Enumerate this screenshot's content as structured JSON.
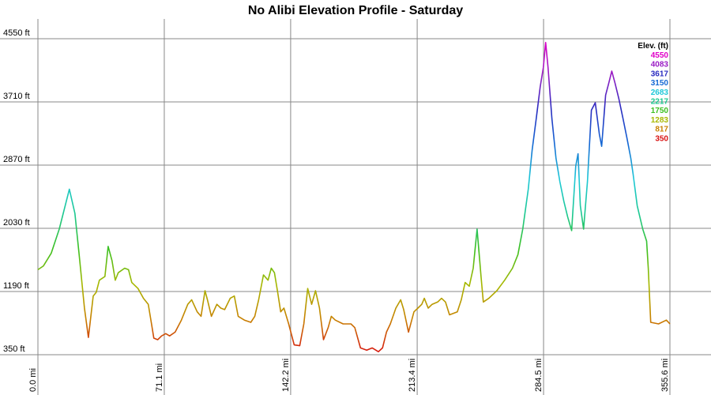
{
  "chart_data": {
    "type": "line",
    "title": "No Alibi Elevation Profile - Saturday",
    "x": [
      0,
      3.1,
      7.5,
      12.0,
      17.7,
      20.8,
      23.1,
      26.2,
      28.4,
      31.1,
      32.8,
      34.6,
      37.7,
      39.5,
      41.7,
      43.5,
      45.2,
      48.8,
      51.0,
      52.8,
      56.3,
      59.4,
      62.1,
      63.9,
      65.2,
      67.4,
      69.6,
      71.9,
      74.1,
      77.2,
      80.7,
      84.3,
      86.5,
      89.6,
      91.8,
      94.0,
      95.4,
      97.6,
      100.7,
      102.9,
      105.1,
      108.2,
      110.5,
      112.7,
      116.2,
      119.8,
      122.0,
      124.2,
      126.9,
      129.5,
      131.3,
      133.1,
      134.9,
      136.6,
      138.4,
      141.1,
      144.2,
      147.3,
      149.6,
      151.8,
      154.0,
      156.2,
      158.4,
      160.7,
      163.3,
      165.1,
      167.3,
      171.7,
      176.1,
      178.3,
      181.5,
      185.0,
      188.1,
      191.6,
      193.9,
      196.1,
      198.3,
      201.4,
      204.1,
      205.8,
      208.5,
      211.6,
      213.8,
      216.0,
      217.4,
      219.6,
      221.8,
      224.9,
      227.1,
      229.3,
      231.6,
      236.0,
      238.2,
      240.4,
      242.7,
      244.9,
      247.1,
      249.3,
      250.6,
      253.7,
      258.2,
      262.6,
      267.0,
      270.1,
      272.8,
      275.9,
      278.1,
      280.4,
      282.6,
      284.4,
      285.7,
      287.0,
      289.2,
      291.5,
      293.7,
      295.9,
      298.1,
      300.3,
      302.6,
      303.9,
      305.2,
      307.0,
      309.2,
      311.4,
      313.6,
      315.9,
      317.2,
      319.4,
      321.2,
      322.9,
      324.7,
      326.9,
      329.2,
      331.4,
      333.6,
      334.9,
      337.2,
      340.3,
      342.5,
      343.4,
      344.8,
      349.2,
      353.6,
      355.6
    ],
    "series": [
      {
        "name": "Elevation",
        "values": [
          1480,
          1530,
          1700,
          2020,
          2550,
          2230,
          1700,
          970,
          580,
          1130,
          1180,
          1340,
          1390,
          1790,
          1600,
          1340,
          1440,
          1500,
          1480,
          1310,
          1230,
          1100,
          1020,
          760,
          570,
          550,
          600,
          630,
          600,
          650,
          810,
          1020,
          1080,
          920,
          860,
          1200,
          1080,
          860,
          1020,
          970,
          950,
          1100,
          1130,
          860,
          810,
          780,
          860,
          1080,
          1410,
          1340,
          1500,
          1440,
          1180,
          920,
          970,
          760,
          480,
          470,
          760,
          1230,
          1020,
          1200,
          970,
          550,
          710,
          860,
          810,
          760,
          760,
          710,
          440,
          410,
          440,
          390,
          440,
          650,
          760,
          970,
          1080,
          950,
          650,
          920,
          970,
          1020,
          1100,
          970,
          1020,
          1050,
          1100,
          1050,
          880,
          920,
          1080,
          1310,
          1260,
          1500,
          2020,
          1390,
          1050,
          1100,
          1200,
          1340,
          1500,
          1680,
          2020,
          2550,
          3070,
          3490,
          3910,
          4170,
          4500,
          4170,
          3490,
          2960,
          2650,
          2390,
          2180,
          2000,
          2860,
          3020,
          2330,
          2020,
          2650,
          3600,
          3700,
          3280,
          3120,
          3800,
          3960,
          4120,
          3960,
          3750,
          3490,
          3230,
          2960,
          2750,
          2330,
          2020,
          1860,
          1500,
          780,
          760,
          810,
          760
        ]
      }
    ],
    "xlim": [
      0,
      355.6
    ],
    "ylim": [
      350,
      4550
    ],
    "xticks": [
      {
        "value": 0,
        "label": "0.0 mi"
      },
      {
        "value": 71.1,
        "label": "71.1 mi"
      },
      {
        "value": 142.2,
        "label": "142.2 mi"
      },
      {
        "value": 213.4,
        "label": "213.4 mi"
      },
      {
        "value": 284.5,
        "label": "284.5 mi"
      },
      {
        "value": 355.6,
        "label": "355.6 mi"
      }
    ],
    "yticks": [
      {
        "value": 350,
        "label": "350 ft"
      },
      {
        "value": 1190,
        "label": "1190 ft"
      },
      {
        "value": 2030,
        "label": "2030 ft"
      },
      {
        "value": 2870,
        "label": "2870 ft"
      },
      {
        "value": 3710,
        "label": "3710 ft"
      },
      {
        "value": 4550,
        "label": "4550 ft"
      }
    ],
    "grid": true,
    "color_scale": {
      "title": "Elev. (ft)",
      "stops": [
        {
          "value": 4550,
          "color": "#e000c8"
        },
        {
          "value": 4083,
          "color": "#9a1cc4"
        },
        {
          "value": 3617,
          "color": "#2a2cc0"
        },
        {
          "value": 3150,
          "color": "#1468d4"
        },
        {
          "value": 2683,
          "color": "#1ec8d8"
        },
        {
          "value": 2217,
          "color": "#1cc890"
        },
        {
          "value": 1750,
          "color": "#3cc020"
        },
        {
          "value": 1283,
          "color": "#a8b800"
        },
        {
          "value": 817,
          "color": "#c88000"
        },
        {
          "value": 350,
          "color": "#d81010"
        }
      ]
    }
  }
}
